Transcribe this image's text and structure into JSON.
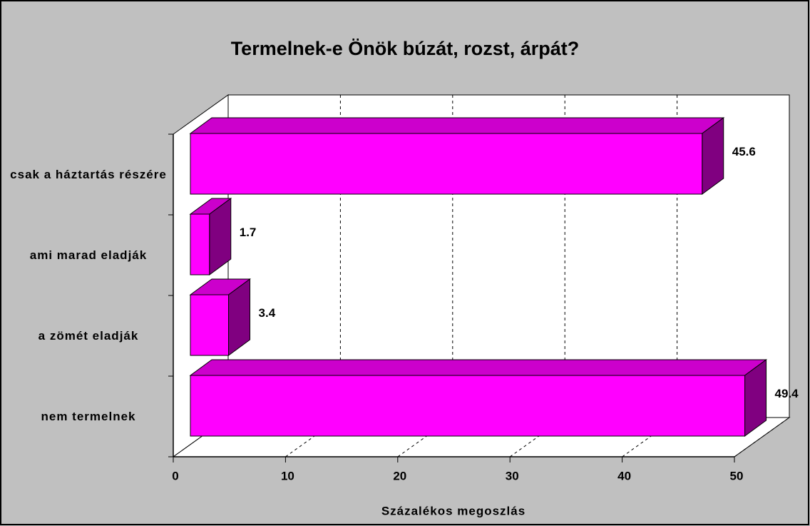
{
  "chart_data": {
    "type": "bar3d",
    "title": "Termelnek-e Önök búzát, rozst, árpát?",
    "x_label": "Százalékos megoszlás",
    "categories": [
      "csak a háztartás részére",
      "ami marad eladják",
      "a zömét eladják",
      "nem termelnek"
    ],
    "values": [
      45.6,
      1.7,
      3.4,
      49.4
    ],
    "color": "#ff00ff",
    "xlim": [
      0,
      50
    ],
    "xticks": [
      0,
      10,
      20,
      30,
      40,
      50
    ],
    "grid": true
  }
}
